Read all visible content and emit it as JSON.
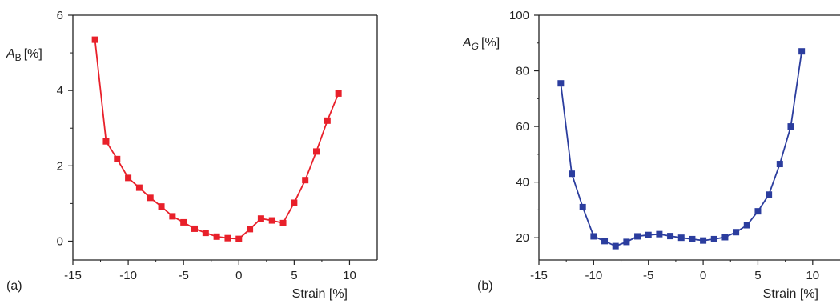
{
  "chart_data": [
    {
      "type": "line",
      "panel_label": "(a)",
      "xlabel": "Strain [%]",
      "ylabel_main": "A",
      "ylabel_sub": "B",
      "ylabel_unit": "[%]",
      "xlim": [
        -15,
        12.5
      ],
      "ylim": [
        -0.5,
        6
      ],
      "xticks": [
        -15,
        -10,
        -5,
        0,
        5,
        10
      ],
      "yticks": [
        0,
        2,
        4,
        6
      ],
      "color": "#e8202a",
      "series": [
        {
          "x": [
            -13,
            -12,
            -11,
            -10,
            -9,
            -8,
            -7,
            -6,
            -5,
            -4,
            -3,
            -2,
            -1,
            0,
            1,
            2,
            3,
            4,
            5,
            6,
            7,
            8,
            9
          ],
          "y": [
            5.35,
            2.65,
            2.18,
            1.68,
            1.42,
            1.15,
            0.92,
            0.66,
            0.5,
            0.33,
            0.22,
            0.12,
            0.08,
            0.06,
            0.32,
            0.6,
            0.55,
            0.48,
            1.02,
            1.62,
            2.38,
            3.2,
            3.92
          ]
        }
      ]
    },
    {
      "type": "line",
      "panel_label": "(b)",
      "xlabel": "Strain [%]",
      "ylabel_main": "A",
      "ylabel_sub": "G",
      "ylabel_unit": "[%]",
      "xlim": [
        -15,
        12.5
      ],
      "ylim": [
        12,
        100
      ],
      "xticks": [
        -15,
        -10,
        -5,
        0,
        5,
        10
      ],
      "yticks": [
        20,
        40,
        60,
        80,
        100
      ],
      "color": "#2b3d9e",
      "series": [
        {
          "x": [
            -13,
            -12,
            -11,
            -10,
            -9,
            -8,
            -7,
            -6,
            -5,
            -4,
            -3,
            -2,
            -1,
            0,
            1,
            2,
            3,
            4,
            5,
            6,
            7,
            8,
            9
          ],
          "y": [
            75.5,
            43,
            31,
            20.5,
            18.8,
            17,
            18.5,
            20.5,
            21,
            21.3,
            20.6,
            20,
            19.5,
            19,
            19.5,
            20.2,
            22,
            24.5,
            29.5,
            35.5,
            46.5,
            60,
            87
          ]
        }
      ]
    }
  ]
}
